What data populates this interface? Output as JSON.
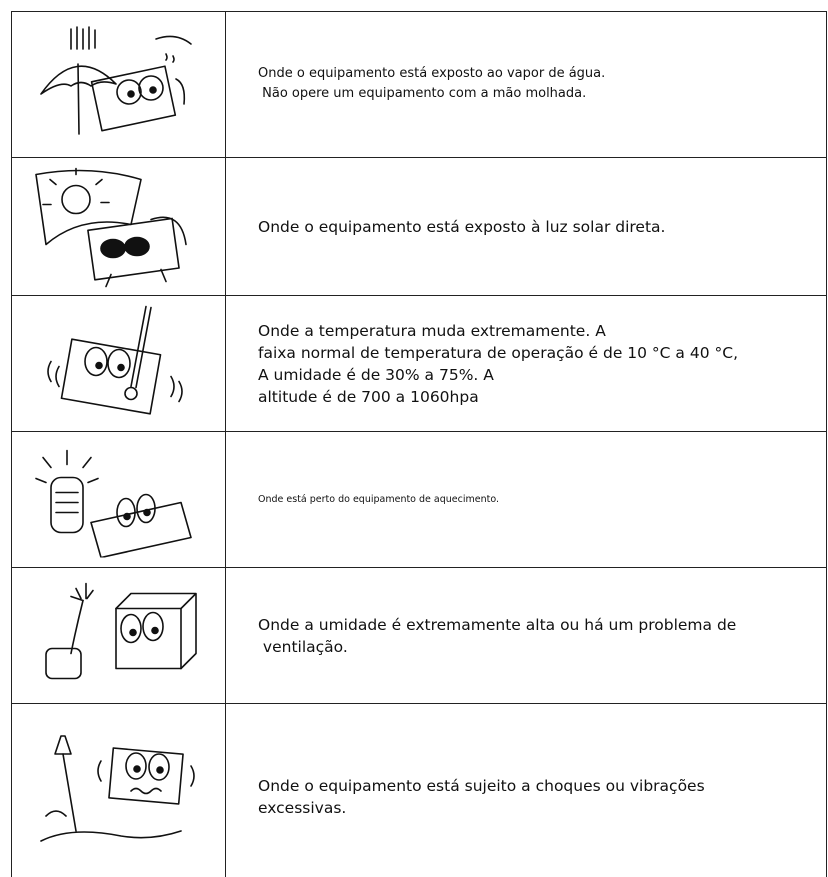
{
  "table": {
    "rows": [
      {
        "lines": [
          "Onde o equipamento está exposto ao vapor de água.",
          " Não opere um equipamento com a mão molhada."
        ]
      },
      {
        "lines": [
          "Onde o equipamento está exposto à luz solar direta."
        ]
      },
      {
        "lines": [
          "Onde a temperatura muda extremamente. A",
          "faixa normal de temperatura de operação é de 10 °C a 40 °C,",
          "A umidade é de 30% a 75%. A",
          "altitude é de 700 a 1060hpa"
        ]
      },
      {
        "lines": [
          "Onde está perto do equipamento de aquecimento."
        ]
      },
      {
        "lines": [
          "Onde a umidade é extremamente alta ou há um problema de",
          " ventilação."
        ]
      },
      {
        "lines": [
          "Onde o equipamento está sujeito a choques ou vibrações",
          "excessivas."
        ]
      }
    ]
  }
}
